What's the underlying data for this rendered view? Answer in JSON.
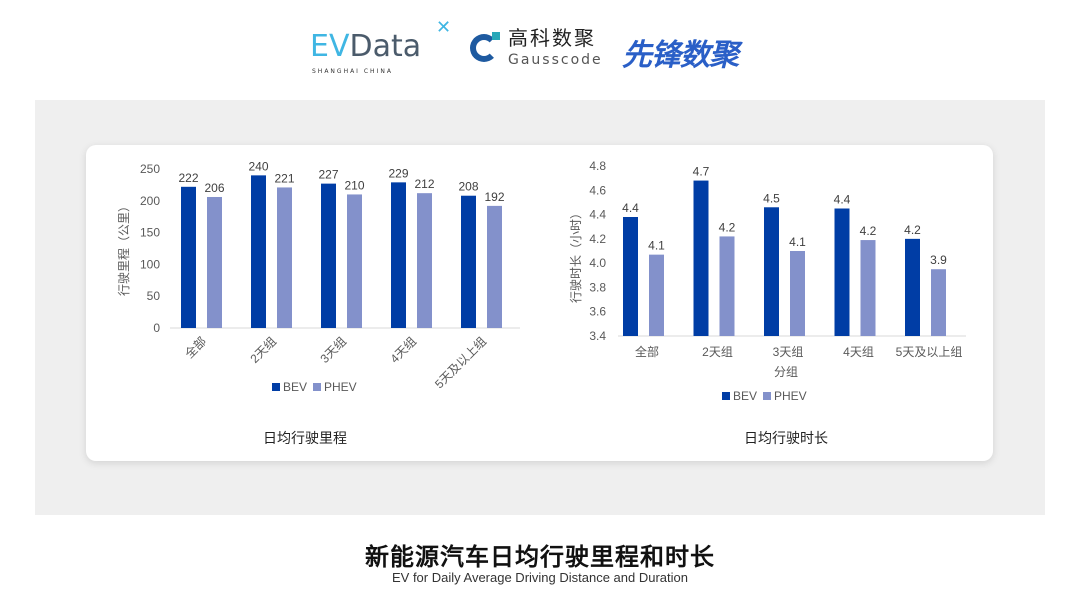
{
  "logos": {
    "evdata": {
      "ev": "EV",
      "data": "Data",
      "x": "✕",
      "sub": "SHANGHAI CHINA"
    },
    "gausscode": {
      "cn": "高科数聚",
      "en": "Gausscode"
    },
    "xianfeng": "先锋数聚"
  },
  "colors": {
    "bev": "#003da5",
    "phev": "#8391cb",
    "panel": "#efefef"
  },
  "chart_data": [
    {
      "type": "bar",
      "title": "日均行驶里程",
      "xlabel": "",
      "ylabel": "行驶里程（公里）",
      "categories": [
        "全部",
        "2天组",
        "3天组",
        "4天组",
        "5天及以上组"
      ],
      "ylim": [
        0,
        250
      ],
      "yticks": [
        "0",
        "50",
        "100",
        "150",
        "200",
        "250"
      ],
      "grid": false,
      "legend": "bottom",
      "series": [
        {
          "name": "BEV",
          "values": [
            222,
            240,
            227,
            229,
            208
          ],
          "labels": [
            "222",
            "240",
            "227",
            "229",
            "208"
          ]
        },
        {
          "name": "PHEV",
          "values": [
            206,
            221,
            210,
            212,
            192
          ],
          "labels": [
            "206",
            "221",
            "210",
            "212",
            "192"
          ]
        }
      ]
    },
    {
      "type": "bar",
      "title": "日均行驶时长",
      "xlabel": "分组",
      "ylabel": "行驶时长（小时）",
      "categories": [
        "全部",
        "2天组",
        "3天组",
        "4天组",
        "5天及以上组"
      ],
      "ylim": [
        3.4,
        4.8
      ],
      "yticks": [
        "3.4",
        "3.6",
        "3.8",
        "4.0",
        "4.2",
        "4.4",
        "4.6",
        "4.8"
      ],
      "grid": false,
      "legend": "bottom",
      "series": [
        {
          "name": "BEV",
          "values": [
            4.38,
            4.68,
            4.46,
            4.45,
            4.2
          ],
          "labels": [
            "4.4",
            "4.7",
            "4.5",
            "4.4",
            "4.2"
          ]
        },
        {
          "name": "PHEV",
          "values": [
            4.07,
            4.22,
            4.1,
            4.19,
            3.95
          ],
          "labels": [
            "4.1",
            "4.2",
            "4.1",
            "4.2",
            "3.9"
          ]
        }
      ]
    }
  ],
  "footer": {
    "title": "新能源汽车日均行驶里程和时长",
    "subtitle": "EV for Daily Average Driving Distance and Duration"
  }
}
